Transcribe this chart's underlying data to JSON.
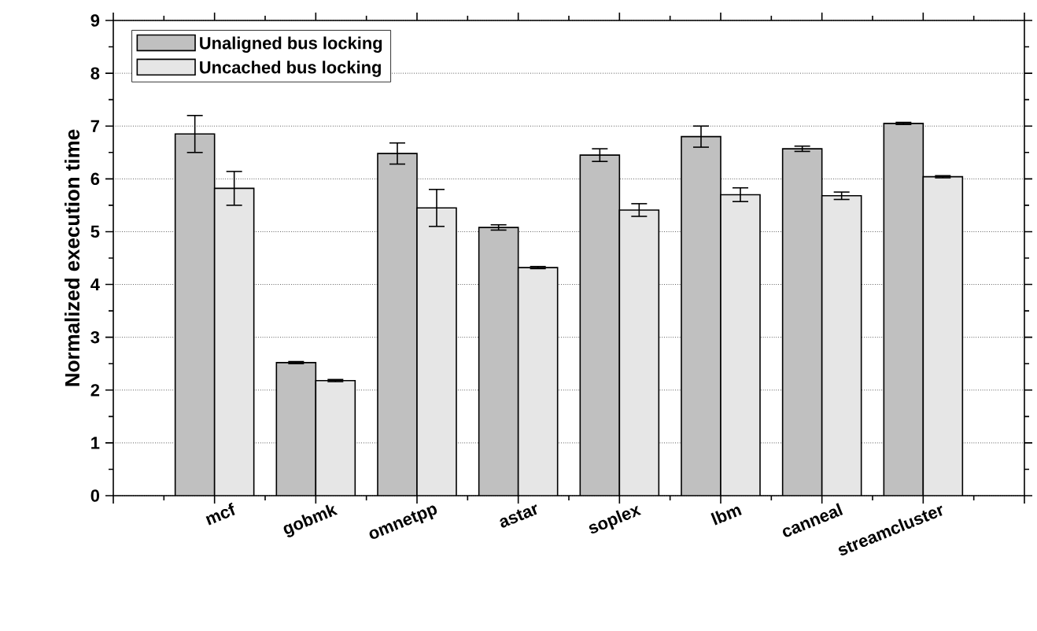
{
  "chart_data": {
    "type": "bar",
    "ylabel": "Normalized execution time",
    "categories": [
      "mcf",
      "gobmk",
      "omnetpp",
      "astar",
      "soplex",
      "lbm",
      "canneal",
      "streamcluster"
    ],
    "series": [
      {
        "name": "Unaligned bus locking",
        "color": "#c0c0c0",
        "values": [
          6.85,
          2.52,
          6.48,
          5.08,
          6.45,
          6.8,
          6.57,
          7.05
        ],
        "errors": [
          0.35,
          0.02,
          0.2,
          0.05,
          0.12,
          0.2,
          0.05,
          0.02
        ]
      },
      {
        "name": "Uncached bus locking",
        "color": "#e6e6e6",
        "values": [
          5.82,
          2.18,
          5.45,
          4.32,
          5.41,
          5.7,
          5.68,
          6.04
        ],
        "errors": [
          0.32,
          0.02,
          0.35,
          0.02,
          0.12,
          0.13,
          0.07,
          0.02
        ]
      }
    ],
    "ylim": [
      0,
      9
    ],
    "yticks": [
      0,
      1,
      2,
      3,
      4,
      5,
      6,
      7,
      8,
      9
    ],
    "grid": "y",
    "legend": "top left"
  }
}
